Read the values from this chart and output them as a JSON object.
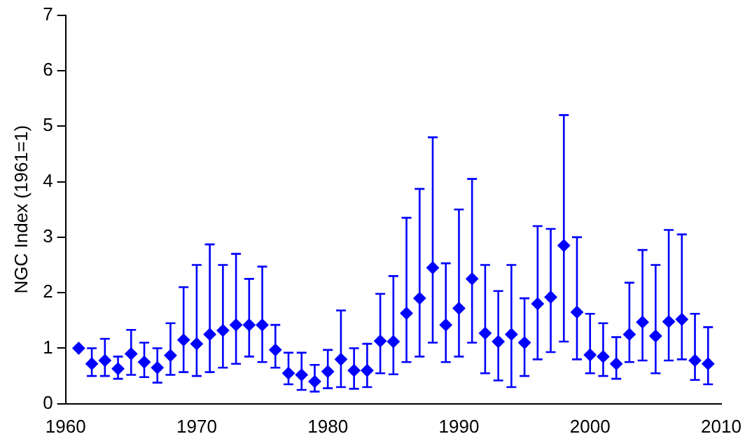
{
  "chart_data": {
    "type": "scatter",
    "ylabel": "NGC Index (1961=1)",
    "marker": "diamond",
    "grid": false,
    "legend": false,
    "xlim": [
      1960,
      2010
    ],
    "xticks": [
      1960,
      1970,
      1980,
      1990,
      2000,
      2010
    ],
    "ylim": [
      0,
      7
    ],
    "yticks": [
      0,
      1,
      2,
      3,
      4,
      5,
      6,
      7
    ],
    "series": [
      {
        "color": "#0000ff",
        "x": [
          1961,
          1962,
          1963,
          1964,
          1965,
          1966,
          1967,
          1968,
          1969,
          1970,
          1971,
          1972,
          1973,
          1974,
          1975,
          1976,
          1977,
          1978,
          1979,
          1980,
          1981,
          1982,
          1983,
          1984,
          1985,
          1986,
          1987,
          1988,
          1989,
          1990,
          1991,
          1992,
          1993,
          1994,
          1995,
          1996,
          1997,
          1998,
          1999,
          2000,
          2001,
          2002,
          2003,
          2004,
          2005,
          2006,
          2007,
          2008,
          2009
        ],
        "values": [
          1.0,
          0.72,
          0.78,
          0.63,
          0.9,
          0.75,
          0.65,
          0.87,
          1.15,
          1.08,
          1.25,
          1.32,
          1.42,
          1.42,
          1.42,
          0.97,
          0.55,
          0.52,
          0.4,
          0.58,
          0.8,
          0.6,
          0.6,
          1.13,
          1.12,
          1.63,
          1.9,
          2.45,
          1.42,
          1.72,
          2.25,
          1.27,
          1.12,
          1.25,
          1.1,
          1.8,
          1.92,
          2.85,
          1.65,
          0.88,
          0.85,
          0.72,
          1.25,
          1.47,
          1.22,
          1.48,
          1.52,
          0.78,
          0.72
        ],
        "errors": [
          null,
          [
            0.5,
            1.0
          ],
          [
            0.5,
            1.17
          ],
          [
            0.45,
            0.85
          ],
          [
            0.52,
            1.33
          ],
          [
            0.48,
            1.1
          ],
          [
            0.38,
            1.0
          ],
          [
            0.52,
            1.45
          ],
          [
            0.57,
            2.1
          ],
          [
            0.5,
            2.5
          ],
          [
            0.57,
            2.87
          ],
          [
            0.65,
            2.5
          ],
          [
            0.72,
            2.7
          ],
          [
            0.85,
            2.25
          ],
          [
            0.75,
            2.47
          ],
          [
            0.65,
            1.42
          ],
          [
            0.35,
            0.92
          ],
          [
            0.25,
            0.92
          ],
          [
            0.22,
            0.7
          ],
          [
            0.28,
            0.97
          ],
          [
            0.3,
            1.68
          ],
          [
            0.27,
            1.0
          ],
          [
            0.3,
            1.08
          ],
          [
            0.55,
            1.98
          ],
          [
            0.53,
            2.3
          ],
          [
            0.75,
            3.35
          ],
          [
            0.85,
            3.87
          ],
          [
            1.1,
            4.8
          ],
          [
            0.75,
            2.53
          ],
          [
            0.85,
            3.5
          ],
          [
            1.1,
            4.05
          ],
          [
            0.55,
            2.5
          ],
          [
            0.42,
            2.03
          ],
          [
            0.3,
            2.5
          ],
          [
            0.5,
            1.9
          ],
          [
            0.8,
            3.2
          ],
          [
            0.93,
            3.15
          ],
          [
            1.12,
            5.2
          ],
          [
            0.8,
            3.0
          ],
          [
            0.55,
            1.62
          ],
          [
            0.5,
            1.45
          ],
          [
            0.45,
            1.2
          ],
          [
            0.75,
            2.18
          ],
          [
            0.78,
            2.77
          ],
          [
            0.55,
            2.5
          ],
          [
            0.78,
            3.13
          ],
          [
            0.8,
            3.05
          ],
          [
            0.43,
            1.62
          ],
          [
            0.35,
            1.38
          ]
        ]
      }
    ]
  }
}
